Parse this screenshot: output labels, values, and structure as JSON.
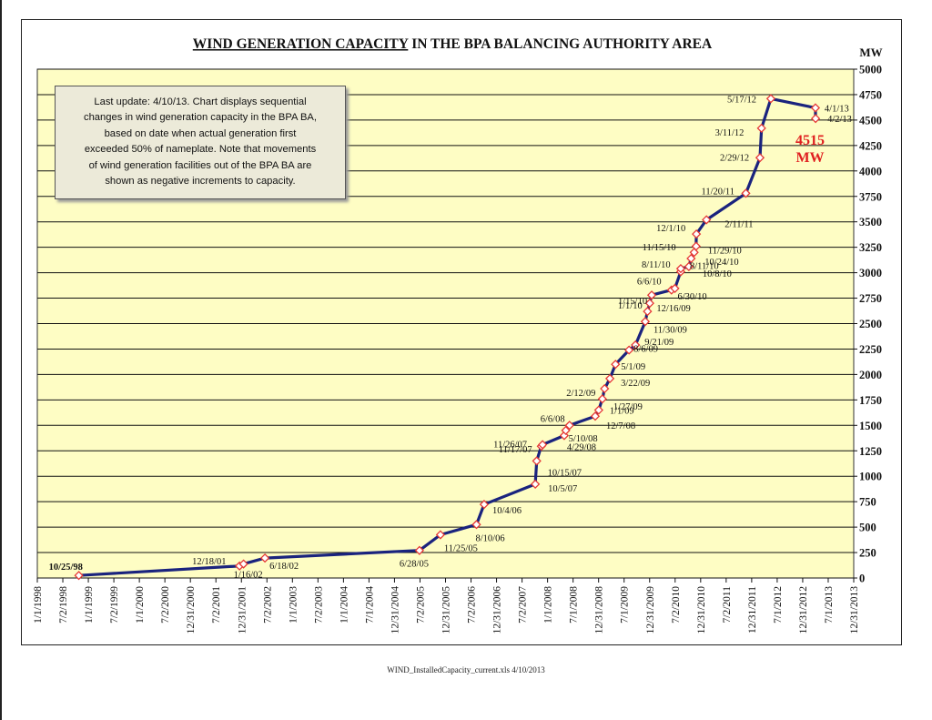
{
  "chart_data": {
    "type": "line",
    "title": "WIND GENERATION CAPACITY IN THE BPA BALANCING AUTHORITY AREA",
    "title_underlined_part": "WIND GENERATION CAPACITY",
    "title_rest": " IN THE BPA BALANCING AUTHORITY AREA",
    "ylabel": "MW",
    "ylim": [
      0,
      5000
    ],
    "y_ticks": [
      "0",
      "250",
      "500",
      "750",
      "1000",
      "1250",
      "1500",
      "1750",
      "2000",
      "2250",
      "2500",
      "2750",
      "3000",
      "3250",
      "3500",
      "3750",
      "4000",
      "4250",
      "4500",
      "4750",
      "5000"
    ],
    "x_ticks": [
      "1/1/1998",
      "7/2/1998",
      "1/1/1999",
      "7/2/1999",
      "1/1/2000",
      "7/2/2000",
      "12/31/2000",
      "7/2/2001",
      "12/31/2001",
      "7/2/2002",
      "1/1/2003",
      "7/2/2003",
      "1/1/2004",
      "7/1/2004",
      "12/31/2004",
      "7/2/2005",
      "12/31/2005",
      "7/2/2006",
      "12/31/2006",
      "7/2/2007",
      "1/1/2008",
      "7/1/2008",
      "12/31/2008",
      "7/1/2009",
      "12/31/2009",
      "7/2/2010",
      "12/31/2010",
      "7/2/2011",
      "12/31/2011",
      "7/1/2012",
      "12/31/2012",
      "7/1/2013",
      "12/31/2013"
    ],
    "x_range": [
      "1998-01-01",
      "2013-12-31"
    ],
    "grid": "horizontal",
    "series_color": "#1a237e",
    "marker_color": "#e53935",
    "plot_background": "#fefdc4",
    "annotation_color": "#e02020",
    "annotation": {
      "value": "4515",
      "unit": "MW"
    },
    "note": [
      "Last update: 4/10/13.  Chart displays sequential",
      "changes in wind generation capacity in the BPA BA,",
      "based on date when actual generation first",
      "exceeded 50% of nameplate.  Note that movements",
      "of wind generation facilities out of the BPA BA are",
      "shown as negative increments to capacity."
    ],
    "points": [
      {
        "x": "1998-10-25",
        "y": 25,
        "label": "10/25/98"
      },
      {
        "x": "2001-12-18",
        "y": 118,
        "label": "12/18/01"
      },
      {
        "x": "2002-01-16",
        "y": 138,
        "label": "1/16/02"
      },
      {
        "x": "2002-06-18",
        "y": 196,
        "label": "6/18/02"
      },
      {
        "x": "2005-06-28",
        "y": 271,
        "label": "6/28/05"
      },
      {
        "x": "2005-11-25",
        "y": 425,
        "label": "11/25/05"
      },
      {
        "x": "2006-08-10",
        "y": 525,
        "label": "8/10/06"
      },
      {
        "x": "2006-10-04",
        "y": 723,
        "label": "10/4/06"
      },
      {
        "x": "2007-10-05",
        "y": 922,
        "label": "10/5/07"
      },
      {
        "x": "2007-10-15",
        "y": 1150,
        "label": "10/15/07"
      },
      {
        "x": "2007-11-17",
        "y": 1295,
        "label": "11/17/07"
      },
      {
        "x": "2007-11-26",
        "y": 1310,
        "label": "11/26/07"
      },
      {
        "x": "2008-04-29",
        "y": 1400,
        "label": "4/29/08"
      },
      {
        "x": "2008-05-10",
        "y": 1450,
        "label": "5/10/08"
      },
      {
        "x": "2008-06-06",
        "y": 1500,
        "label": "6/6/08"
      },
      {
        "x": "2008-12-07",
        "y": 1590,
        "label": "12/7/08"
      },
      {
        "x": "2009-01-01",
        "y": 1650,
        "label": "1/1/09"
      },
      {
        "x": "2009-01-27",
        "y": 1760,
        "label": "1/27/09"
      },
      {
        "x": "2009-02-12",
        "y": 1860,
        "label": "2/12/09"
      },
      {
        "x": "2009-03-22",
        "y": 1960,
        "label": "3/22/09"
      },
      {
        "x": "2009-05-01",
        "y": 2100,
        "label": "5/1/09"
      },
      {
        "x": "2009-08-06",
        "y": 2240,
        "label": "8/6/09"
      },
      {
        "x": "2009-09-21",
        "y": 2290,
        "label": "9/21/09"
      },
      {
        "x": "2009-11-30",
        "y": 2520,
        "label": "11/30/09"
      },
      {
        "x": "2009-12-16",
        "y": 2620,
        "label": "12/16/09"
      },
      {
        "x": "2010-01-01",
        "y": 2700,
        "label": "1/1/10"
      },
      {
        "x": "2010-01-15",
        "y": 2780,
        "label": "1/15/10"
      },
      {
        "x": "2010-06-06",
        "y": 2830,
        "label": "6/6/10"
      },
      {
        "x": "2010-06-30",
        "y": 2845,
        "label": "6/30/10"
      },
      {
        "x": "2010-08-11",
        "y": 3010,
        "label": "8/11/10"
      },
      {
        "x": "2010-08-11",
        "y": 3040,
        "label": "8/11/10"
      },
      {
        "x": "2010-10-08",
        "y": 3060,
        "label": "10/8/10"
      },
      {
        "x": "2010-10-24",
        "y": 3140,
        "label": "10/24/10"
      },
      {
        "x": "2010-11-15",
        "y": 3200,
        "label": "11/15/10"
      },
      {
        "x": "2010-11-29",
        "y": 3260,
        "label": "11/29/10"
      },
      {
        "x": "2010-12-01",
        "y": 3380,
        "label": "12/1/10"
      },
      {
        "x": "2011-02-11",
        "y": 3520,
        "label": "2/11/11"
      },
      {
        "x": "2011-11-20",
        "y": 3780,
        "label": "11/20/11"
      },
      {
        "x": "2012-02-29",
        "y": 4130,
        "label": "2/29/12"
      },
      {
        "x": "2012-03-11",
        "y": 4420,
        "label": "3/11/12"
      },
      {
        "x": "2012-05-17",
        "y": 4710,
        "label": "5/17/12"
      },
      {
        "x": "2013-04-01",
        "y": 4620,
        "label": "4/1/13"
      },
      {
        "x": "2013-04-02",
        "y": 4515,
        "label": "4/2/13"
      }
    ]
  },
  "footer": "WIND_InstalledCapacity_current.xls   4/10/2013"
}
